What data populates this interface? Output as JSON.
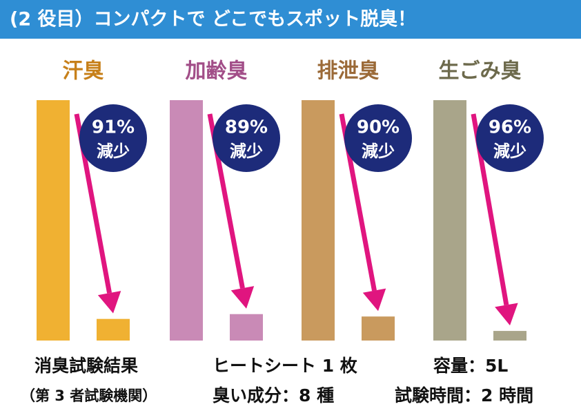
{
  "chart_data": {
    "type": "bar",
    "title": "(2 役目）コンパクトで どこでもスポット脱臭！",
    "categories": [
      "汗臭",
      "加齢臭",
      "排泄臭",
      "生ごみ臭"
    ],
    "label_colors": [
      "#c7801a",
      "#a24e88",
      "#9b6a38",
      "#6d6a4c"
    ],
    "colors": [
      "#f0b132",
      "#c98ab6",
      "#c99a5e",
      "#a9a58a"
    ],
    "before": [
      100,
      100,
      100,
      100
    ],
    "after": [
      9,
      11,
      10,
      4
    ],
    "reduction": {
      "values": [
        91,
        89,
        90,
        96
      ],
      "value_labels": [
        "91%",
        "89%",
        "90%",
        "96%"
      ],
      "label": "減少"
    },
    "ylim": [
      0,
      100
    ]
  },
  "footer": [
    [
      "消臭試験結果",
      "（第 3 者試験機関）"
    ],
    [
      "ヒートシート 1 枚",
      "臭い成分：8 種"
    ],
    [
      "容量：5L",
      "試験時間：2 時間"
    ]
  ]
}
